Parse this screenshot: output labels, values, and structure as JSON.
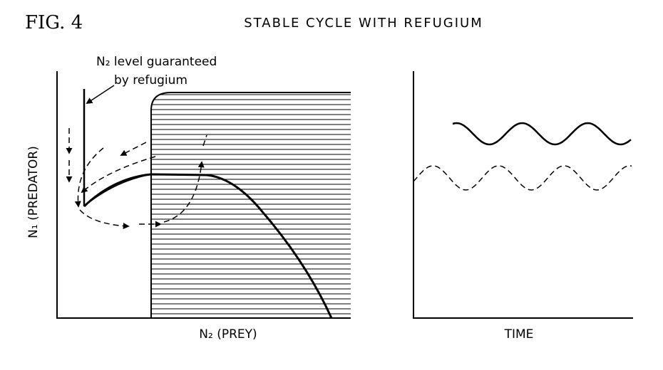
{
  "header": {
    "figure": "FIG. 4",
    "title": "STABLE CYCLE WITH REFUGIUM"
  },
  "phase_plot": {
    "annotation": [
      "N₂ level guaranteed",
      "by refugium"
    ],
    "y_label": "N₁ (PREDATOR)",
    "x_label": "N₂ (PREY)"
  },
  "time_plot": {
    "x_label": "TIME"
  }
}
